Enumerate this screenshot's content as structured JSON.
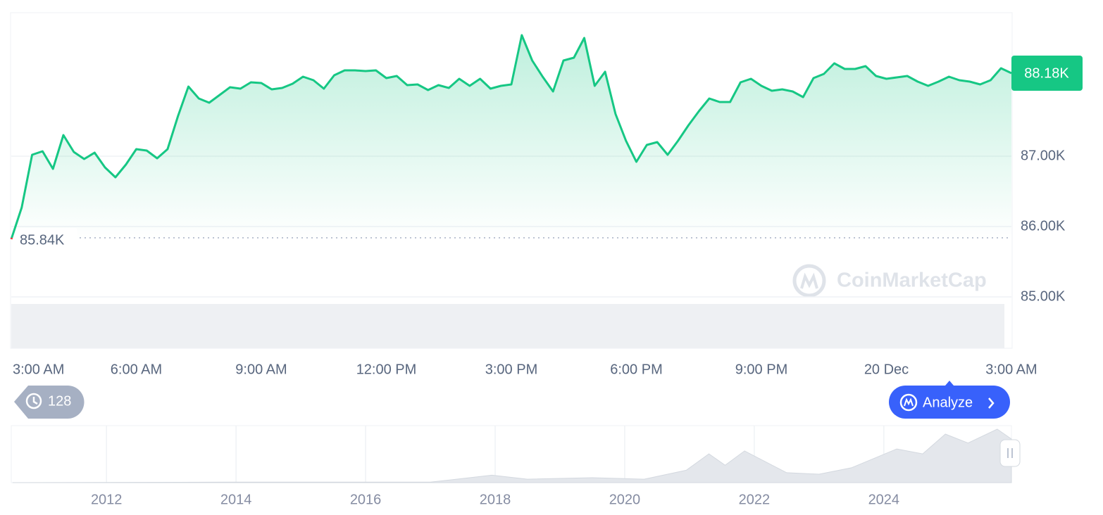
{
  "chart_data": [
    {
      "type": "line",
      "x": [
        3,
        3.25,
        3.5,
        3.75,
        4,
        4.25,
        4.5,
        4.75,
        5,
        5.25,
        5.5,
        5.75,
        6,
        6.25,
        6.5,
        6.75,
        7,
        7.25,
        7.5,
        7.75,
        8,
        8.25,
        8.5,
        8.75,
        9,
        9.25,
        9.5,
        9.75,
        10,
        10.25,
        10.5,
        10.75,
        11,
        11.25,
        11.5,
        11.75,
        12,
        12.25,
        12.5,
        12.75,
        13,
        13.25,
        13.5,
        13.75,
        14,
        14.25,
        14.5,
        14.75,
        15,
        15.25,
        15.5,
        15.75,
        16,
        16.25,
        16.5,
        16.75,
        17,
        17.25,
        17.5,
        17.75,
        18,
        18.25,
        18.5,
        18.75,
        19,
        19.25,
        19.5,
        19.75,
        20,
        20.25,
        20.5,
        20.75,
        21,
        21.25,
        21.5,
        21.75,
        22,
        22.25,
        22.5,
        22.75,
        23,
        23.25,
        23.5,
        23.75,
        24,
        24.25,
        24.5,
        24.75,
        25,
        25.25,
        25.5,
        25.75,
        26,
        26.25,
        26.5,
        26.75,
        27
      ],
      "values": [
        85820,
        86270,
        87020,
        87070,
        86820,
        87300,
        87060,
        86960,
        87050,
        86840,
        86700,
        86880,
        87100,
        87080,
        86970,
        87100,
        87570,
        87990,
        87820,
        87760,
        87870,
        87980,
        87960,
        88050,
        88040,
        87950,
        87970,
        88030,
        88130,
        88080,
        87960,
        88150,
        88220,
        88220,
        88210,
        88220,
        88110,
        88140,
        88010,
        88020,
        87940,
        88010,
        87970,
        88100,
        88000,
        88100,
        87960,
        88000,
        88020,
        88720,
        88360,
        88130,
        87920,
        88360,
        88400,
        88680,
        88000,
        88200,
        87600,
        87220,
        86920,
        87160,
        87200,
        87020,
        87220,
        87440,
        87640,
        87820,
        87770,
        87770,
        88050,
        88100,
        88000,
        87930,
        87950,
        87920,
        87840,
        88110,
        88170,
        88320,
        88240,
        88240,
        88280,
        88140,
        88100,
        88120,
        88140,
        88060,
        88000,
        88060,
        88130,
        88080,
        88060,
        88020,
        88080,
        88250,
        88180
      ],
      "color": "#16c784",
      "below_color": "#ea3943",
      "reference": {
        "value": 85840,
        "label": "85.84K"
      },
      "last": {
        "value": 88180,
        "label": "88.18K"
      },
      "xlim": [
        3,
        27
      ],
      "ylim": [
        84270,
        89040
      ],
      "xticks": [
        {
          "value": 3,
          "label": "3:00 AM"
        },
        {
          "value": 6,
          "label": "6:00 AM"
        },
        {
          "value": 9,
          "label": "9:00 AM"
        },
        {
          "value": 12,
          "label": "12:00 PM"
        },
        {
          "value": 15,
          "label": "3:00 PM"
        },
        {
          "value": 18,
          "label": "6:00 PM"
        },
        {
          "value": 21,
          "label": "9:00 PM"
        },
        {
          "value": 24,
          "label": "20 Dec"
        },
        {
          "value": 27,
          "label": "3:00 AM"
        }
      ],
      "yticks": [
        {
          "value": 85000,
          "label": "85.00K"
        },
        {
          "value": 86000,
          "label": "86.00K"
        },
        {
          "value": 87000,
          "label": "87.00K"
        }
      ],
      "grid": true,
      "watermark": "CoinMarketCap"
    },
    {
      "type": "area",
      "x": [
        2010.55,
        2013.9,
        2017.0,
        2017.95,
        2018.5,
        2019.5,
        2020.3,
        2020.95,
        2021.3,
        2021.55,
        2021.85,
        2022.5,
        2023.0,
        2023.5,
        2024.2,
        2024.6,
        2024.95,
        2025.3,
        2025.75,
        2025.97
      ],
      "values": [
        0,
        1000,
        1000,
        15000,
        7000,
        10000,
        7000,
        25000,
        58000,
        35000,
        64000,
        20000,
        17000,
        30000,
        68000,
        58000,
        98000,
        80000,
        108000,
        88000
      ],
      "color": "#e4e7ec",
      "xlim": [
        2010.53,
        2025.97
      ],
      "ylim": [
        0,
        115000
      ],
      "xticks": [
        2012,
        2014,
        2016,
        2018,
        2020,
        2022,
        2024
      ],
      "grid": true
    }
  ],
  "controls": {
    "history_count": 128,
    "analyze_button": "Analyze"
  }
}
